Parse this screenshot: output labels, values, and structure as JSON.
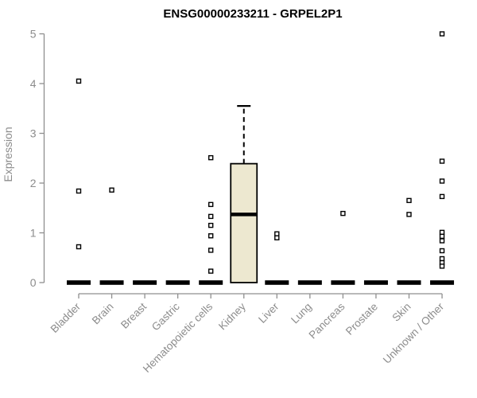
{
  "chart_data": {
    "type": "boxplot",
    "title": "ENSG00000233211 - GRPEL2P1",
    "ylabel": "Expression",
    "xlabel": "",
    "ylim": [
      0,
      5
    ],
    "y_ticks": [
      0,
      1,
      2,
      3,
      4,
      5
    ],
    "grid": false,
    "legend": false,
    "categories": [
      "Bladder",
      "Brain",
      "Breast",
      "Gastric",
      "Hematopoietic cells",
      "Kidney",
      "Liver",
      "Lung",
      "Pancreas",
      "Prostate",
      "Skin",
      "Unknown / Other"
    ],
    "series": [
      {
        "category": "Bladder",
        "q1": 0,
        "median": 0,
        "q3": 0,
        "whisker_low": null,
        "whisker_high": null,
        "outliers": [
          4.05,
          1.84,
          0.72
        ]
      },
      {
        "category": "Brain",
        "q1": 0,
        "median": 0,
        "q3": 0,
        "whisker_low": null,
        "whisker_high": null,
        "outliers": [
          1.86
        ]
      },
      {
        "category": "Breast",
        "q1": 0,
        "median": 0,
        "q3": 0,
        "whisker_low": null,
        "whisker_high": null,
        "outliers": []
      },
      {
        "category": "Gastric",
        "q1": 0,
        "median": 0,
        "q3": 0,
        "whisker_low": null,
        "whisker_high": null,
        "outliers": []
      },
      {
        "category": "Hematopoietic cells",
        "q1": 0,
        "median": 0,
        "q3": 0,
        "whisker_low": null,
        "whisker_high": null,
        "outliers": [
          2.51,
          1.57,
          1.33,
          1.15,
          0.94,
          0.65,
          0.23
        ]
      },
      {
        "category": "Kidney",
        "q1": 0,
        "median": 1.37,
        "q3": 2.39,
        "whisker_low": null,
        "whisker_high": 3.55,
        "outliers": []
      },
      {
        "category": "Liver",
        "q1": 0,
        "median": 0,
        "q3": 0,
        "whisker_low": null,
        "whisker_high": null,
        "outliers": [
          0.98,
          0.9
        ]
      },
      {
        "category": "Lung",
        "q1": 0,
        "median": 0,
        "q3": 0,
        "whisker_low": null,
        "whisker_high": null,
        "outliers": []
      },
      {
        "category": "Pancreas",
        "q1": 0,
        "median": 0,
        "q3": 0,
        "whisker_low": null,
        "whisker_high": null,
        "outliers": [
          1.39
        ]
      },
      {
        "category": "Prostate",
        "q1": 0,
        "median": 0,
        "q3": 0,
        "whisker_low": null,
        "whisker_high": null,
        "outliers": []
      },
      {
        "category": "Skin",
        "q1": 0,
        "median": 0,
        "q3": 0,
        "whisker_low": null,
        "whisker_high": null,
        "outliers": [
          1.65,
          1.37
        ]
      },
      {
        "category": "Unknown / Other",
        "q1": 0,
        "median": 0,
        "q3": 0,
        "whisker_low": null,
        "whisker_high": null,
        "outliers": [
          5.0,
          2.44,
          2.04,
          1.73,
          1.01,
          0.93,
          0.84,
          0.64,
          0.48,
          0.4,
          0.33
        ]
      }
    ],
    "colors": {
      "background": "#ffffff",
      "box_fill": "#ede8d0",
      "box_stroke": "#000000",
      "median_color": "#000000",
      "outlier_fill": "#ffffff",
      "outlier_stroke": "#000000",
      "axis_color": "#8f8f8f",
      "tick_text_color": "#8c8c8c",
      "title_color": "#000000"
    }
  }
}
